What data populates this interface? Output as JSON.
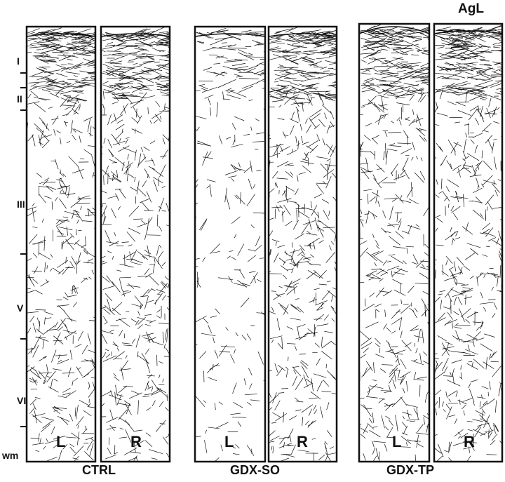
{
  "figure": {
    "title": "AgL",
    "layer_labels": [
      "I",
      "II",
      "III",
      "V",
      "VI",
      "wm"
    ],
    "groups": [
      {
        "name": "CTRL",
        "panels": [
          "L",
          "R"
        ],
        "fiber_density": [
          0.85,
          0.85
        ]
      },
      {
        "name": "GDX-SO",
        "panels": [
          "L",
          "R"
        ],
        "fiber_density": [
          0.35,
          0.85
        ]
      },
      {
        "name": "GDX-TP",
        "panels": [
          "L",
          "R"
        ],
        "fiber_density": [
          0.85,
          0.9
        ]
      }
    ],
    "colors": {
      "ink": "#111111",
      "background": "#ffffff"
    }
  }
}
